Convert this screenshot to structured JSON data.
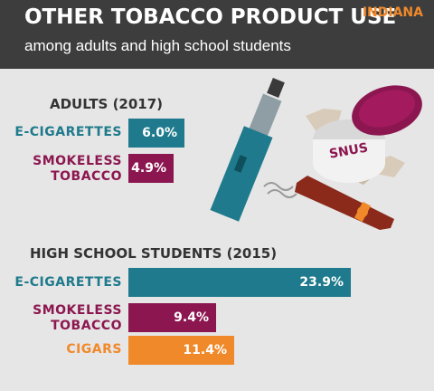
{
  "header": {
    "title": "OTHER TOBACCO PRODUCT USE",
    "subtitle": "among adults and high school students",
    "state": "INDIANA"
  },
  "colors": {
    "background": "#e6e6e6",
    "header": "#3d3d3d",
    "e_cigarettes": "#1e7a8c",
    "smokeless": "#8c1750",
    "cigars": "#f0892a",
    "state_accent": "#f0892a"
  },
  "illustration": {
    "snus_label": "SNUS",
    "icons": [
      "e-cigarette-icon",
      "snus-tin-icon",
      "cigar-icon"
    ]
  },
  "chart_data": [
    {
      "type": "bar",
      "orientation": "horizontal",
      "title": "ADULTS (2017)",
      "categories": [
        "E-CIGARETTES",
        "SMOKELESS\nTOBACCO"
      ],
      "values": [
        6.0,
        4.9
      ],
      "value_labels": [
        "6.0%",
        "4.9%"
      ],
      "colors": [
        "#1e7a8c",
        "#8c1750"
      ],
      "unit": "%",
      "xlim": [
        0,
        24
      ]
    },
    {
      "type": "bar",
      "orientation": "horizontal",
      "title": "HIGH SCHOOL STUDENTS (2015)",
      "categories": [
        "E-CIGARETTES",
        "SMOKELESS\nTOBACCO",
        "CIGARS"
      ],
      "values": [
        23.9,
        9.4,
        11.4
      ],
      "value_labels": [
        "23.9%",
        "9.4%",
        "11.4%"
      ],
      "colors": [
        "#1e7a8c",
        "#8c1750",
        "#f0892a"
      ],
      "unit": "%",
      "xlim": [
        0,
        24
      ]
    }
  ]
}
